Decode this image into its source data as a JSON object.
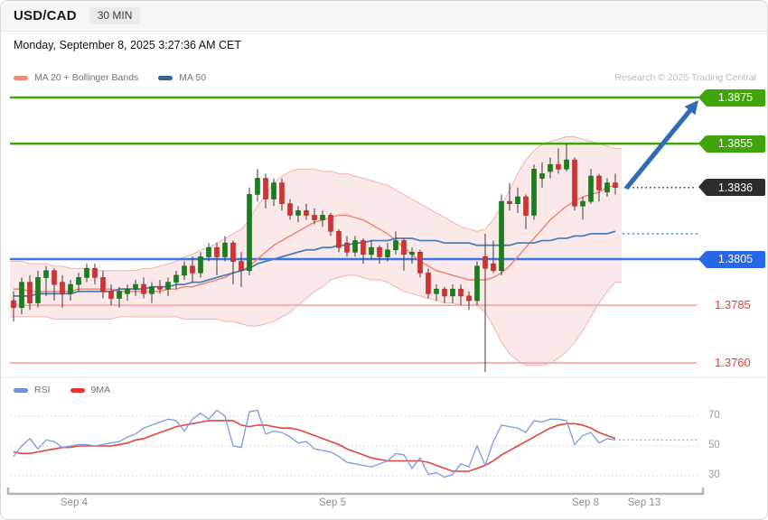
{
  "header": {
    "symbol": "USD/CAD",
    "timeframe": "30 MIN"
  },
  "datetime": "Monday, September 8, 2025 3:27:36 AM CET",
  "credit": "Research © 2025 Trading Central",
  "legend_main": [
    {
      "label": "MA 20 + Bollinger Bands",
      "color": "#f08a7b"
    },
    {
      "label": "MA 50",
      "color": "#3d6390"
    }
  ],
  "legend_rsi": [
    {
      "label": "RSI",
      "color": "#6f8fe0"
    },
    {
      "label": "9MA",
      "color": "#e6362e"
    }
  ],
  "colors": {
    "resistance_green": "#3fa50a",
    "support_blue_label": "#2966e8",
    "support_blue_line": "#3b76e8",
    "last_black": "#2d2d2d",
    "minor_pink_line": "#f2a09e",
    "minor_red_text": "#f03b3b",
    "candle_up": "#17801c",
    "candle_up_border": "#0f6a14",
    "candle_down": "#d23232",
    "candle_down_border": "#b02525",
    "wick": "#3c3c3c",
    "boll_fill": "#f6caca",
    "boll_edge": "#f3b3af",
    "ma20": "#f08070",
    "ma50": "#4b80bd",
    "arrow": "#2e6cb5",
    "rsi_line": "#7e99e6",
    "rsi_ma": "#e6423a",
    "grid": "#c9c9c9",
    "axis": "#b3b3b3"
  },
  "levels": [
    {
      "price": "1.3875",
      "kind": "box",
      "color": "#3fa50a",
      "line_color": "#3fa50a",
      "line": "solid",
      "line_width": 2.5
    },
    {
      "price": "1.3855",
      "kind": "box",
      "color": "#3fa50a",
      "line_color": "#3fa50a",
      "line": "solid",
      "line_width": 2.5
    },
    {
      "price": "1.3836",
      "kind": "box",
      "color": "#2d2d2d",
      "line_color": "#2b2b2b",
      "line": "dotted",
      "line_width": 1.4
    },
    {
      "price": "1.3805",
      "kind": "box",
      "color": "#2966e8",
      "line_color": "#3b76e8",
      "line": "solid",
      "line_width": 2.4
    },
    {
      "price": "1.3785",
      "kind": "text",
      "color": "#f03b3b",
      "line_color": "#f2a09e",
      "line": "solid",
      "line_width": 1.6
    },
    {
      "price": "1.3760",
      "kind": "text",
      "color": "#f03b3b",
      "line_color": "#f2a09e",
      "line": "solid",
      "line_width": 1.6
    }
  ],
  "x_axis": {
    "labels": [
      {
        "label": "Sep 4",
        "x": 81
      },
      {
        "label": "Sep 5",
        "x": 367
      },
      {
        "label": "Sep 8",
        "x": 647
      },
      {
        "label": "Sep 13",
        "x": 712
      }
    ]
  },
  "rsi_axis": [
    70,
    50,
    30
  ],
  "chart_data": {
    "type": "candlestick+rsi",
    "instrument": "USD/CAD",
    "interval": "30 MIN",
    "ylim": [
      1.3753,
      1.3878
    ],
    "levels": [
      1.3875,
      1.3855,
      1.3836,
      1.3805,
      1.3785,
      1.376
    ],
    "last_price": 1.3836,
    "candles": [
      [
        1.3787,
        1.3791,
        1.3778,
        1.3784
      ],
      [
        1.3784,
        1.3797,
        1.3781,
        1.3795
      ],
      [
        1.3795,
        1.3798,
        1.3783,
        1.3786
      ],
      [
        1.3786,
        1.38,
        1.3784,
        1.3797
      ],
      [
        1.3797,
        1.3802,
        1.3789,
        1.38
      ],
      [
        1.38,
        1.3801,
        1.3787,
        1.3794
      ],
      [
        1.3795,
        1.3798,
        1.3784,
        1.379
      ],
      [
        1.379,
        1.3796,
        1.3787,
        1.3794
      ],
      [
        1.3794,
        1.3799,
        1.3791,
        1.3797
      ],
      [
        1.3797,
        1.3803,
        1.3795,
        1.3801
      ],
      [
        1.3801,
        1.3803,
        1.3794,
        1.3797
      ],
      [
        1.3797,
        1.38,
        1.3788,
        1.3791
      ],
      [
        1.3791,
        1.3794,
        1.3785,
        1.3788
      ],
      [
        1.3788,
        1.3793,
        1.3784,
        1.3791
      ],
      [
        1.379,
        1.3794,
        1.3787,
        1.3792
      ],
      [
        1.3792,
        1.3796,
        1.3789,
        1.3794
      ],
      [
        1.3794,
        1.3797,
        1.3788,
        1.379
      ],
      [
        1.379,
        1.3795,
        1.3786,
        1.3793
      ],
      [
        1.3793,
        1.3796,
        1.379,
        1.3792
      ],
      [
        1.3792,
        1.3797,
        1.3789,
        1.3795
      ],
      [
        1.3795,
        1.38,
        1.3792,
        1.3798
      ],
      [
        1.3798,
        1.3804,
        1.3796,
        1.3802
      ],
      [
        1.3802,
        1.3806,
        1.3795,
        1.3799
      ],
      [
        1.3799,
        1.3808,
        1.3797,
        1.3806
      ],
      [
        1.3806,
        1.3812,
        1.3804,
        1.381
      ],
      [
        1.381,
        1.3812,
        1.3798,
        1.3806
      ],
      [
        1.3806,
        1.3815,
        1.3804,
        1.3812
      ],
      [
        1.3812,
        1.3813,
        1.3794,
        1.3804
      ],
      [
        1.3804,
        1.3808,
        1.3793,
        1.38
      ],
      [
        1.38,
        1.3836,
        1.3798,
        1.3833
      ],
      [
        1.3833,
        1.3844,
        1.383,
        1.384
      ],
      [
        1.384,
        1.3842,
        1.3827,
        1.3831
      ],
      [
        1.3831,
        1.384,
        1.3828,
        1.3838
      ],
      [
        1.3838,
        1.384,
        1.3826,
        1.3829
      ],
      [
        1.3829,
        1.3831,
        1.3822,
        1.3824
      ],
      [
        1.3824,
        1.3828,
        1.3821,
        1.3826
      ],
      [
        1.3826,
        1.3829,
        1.3822,
        1.3824
      ],
      [
        1.3824,
        1.3827,
        1.382,
        1.3822
      ],
      [
        1.3822,
        1.3826,
        1.3819,
        1.3824
      ],
      [
        1.3824,
        1.3825,
        1.3815,
        1.3817
      ],
      [
        1.3817,
        1.3818,
        1.3808,
        1.381
      ],
      [
        1.3812,
        1.3815,
        1.3806,
        1.3808
      ],
      [
        1.3808,
        1.3815,
        1.3806,
        1.3813
      ],
      [
        1.3813,
        1.3814,
        1.3803,
        1.3807
      ],
      [
        1.3807,
        1.3813,
        1.3805,
        1.381
      ],
      [
        1.381,
        1.3811,
        1.3803,
        1.3806
      ],
      [
        1.3806,
        1.3812,
        1.3804,
        1.3809
      ],
      [
        1.3809,
        1.3817,
        1.3807,
        1.3813
      ],
      [
        1.3813,
        1.3814,
        1.38,
        1.3807
      ],
      [
        1.3807,
        1.381,
        1.3803,
        1.3808
      ],
      [
        1.3808,
        1.3809,
        1.3797,
        1.3799
      ],
      [
        1.3799,
        1.3801,
        1.3788,
        1.379
      ],
      [
        1.379,
        1.3794,
        1.3787,
        1.3792
      ],
      [
        1.3792,
        1.3793,
        1.3786,
        1.3789
      ],
      [
        1.3789,
        1.3794,
        1.3786,
        1.3792
      ],
      [
        1.3792,
        1.3794,
        1.3785,
        1.3789
      ],
      [
        1.3789,
        1.3791,
        1.3783,
        1.3787
      ],
      [
        1.3787,
        1.3804,
        1.3785,
        1.3802
      ],
      [
        1.3806,
        1.3816,
        1.3756,
        1.3801
      ],
      [
        1.3803,
        1.3813,
        1.3799,
        1.38
      ],
      [
        1.38,
        1.3833,
        1.3798,
        1.383
      ],
      [
        1.383,
        1.3838,
        1.3826,
        1.3829
      ],
      [
        1.3829,
        1.3836,
        1.3825,
        1.3832
      ],
      [
        1.3832,
        1.3833,
        1.3818,
        1.3824
      ],
      [
        1.3824,
        1.3846,
        1.3822,
        1.3844
      ],
      [
        1.384,
        1.3847,
        1.3836,
        1.3842
      ],
      [
        1.3843,
        1.3849,
        1.384,
        1.3846
      ],
      [
        1.3846,
        1.3853,
        1.3842,
        1.3844
      ],
      [
        1.3844,
        1.3855,
        1.3843,
        1.3848
      ],
      [
        1.3848,
        1.3849,
        1.3826,
        1.3828
      ],
      [
        1.3828,
        1.3832,
        1.3822,
        1.383
      ],
      [
        1.383,
        1.3844,
        1.3829,
        1.3841
      ],
      [
        1.3841,
        1.3842,
        1.383,
        1.3835
      ],
      [
        1.3834,
        1.384,
        1.3832,
        1.3838
      ],
      [
        1.3838,
        1.3842,
        1.3833,
        1.3836
      ]
    ],
    "ma20": [
      1.3792,
      1.3792,
      1.3791,
      1.3791,
      1.3791,
      1.3791,
      1.3791,
      1.3791,
      1.3792,
      1.3792,
      1.3792,
      1.3792,
      1.3792,
      1.3791,
      1.3791,
      1.3791,
      1.3791,
      1.3791,
      1.3791,
      1.3792,
      1.3792,
      1.3793,
      1.3793,
      1.3794,
      1.3795,
      1.3796,
      1.3797,
      1.3799,
      1.38,
      1.3802,
      1.3805,
      1.3808,
      1.3811,
      1.3813,
      1.3815,
      1.3817,
      1.3819,
      1.3821,
      1.3822,
      1.3823,
      1.3824,
      1.3824,
      1.3823,
      1.3822,
      1.382,
      1.3818,
      1.3816,
      1.3813,
      1.381,
      1.3807,
      1.3804,
      1.3802,
      1.38,
      1.3799,
      1.3798,
      1.3797,
      1.3796,
      1.3796,
      1.3796,
      1.3797,
      1.3799,
      1.3802,
      1.3806,
      1.381,
      1.3814,
      1.3818,
      1.3822,
      1.3825,
      1.3828,
      1.383,
      1.3832,
      1.3833,
      1.3834,
      1.3836,
      1.3837
    ],
    "ma50": [
      1.3789,
      1.3789,
      1.3789,
      1.379,
      1.379,
      1.379,
      1.379,
      1.379,
      1.3791,
      1.3791,
      1.3791,
      1.3791,
      1.3791,
      1.3792,
      1.3792,
      1.3792,
      1.3792,
      1.3793,
      1.3793,
      1.3793,
      1.3794,
      1.3794,
      1.3795,
      1.3795,
      1.3796,
      1.3797,
      1.3798,
      1.3799,
      1.38,
      1.3801,
      1.3803,
      1.3804,
      1.3805,
      1.3806,
      1.3807,
      1.3808,
      1.3809,
      1.3809,
      1.381,
      1.381,
      1.3811,
      1.3811,
      1.3812,
      1.3812,
      1.3813,
      1.3813,
      1.3813,
      1.3814,
      1.3814,
      1.3814,
      1.3813,
      1.3813,
      1.3813,
      1.3812,
      1.3812,
      1.3812,
      1.3812,
      1.3811,
      1.3811,
      1.3811,
      1.3811,
      1.3811,
      1.3812,
      1.3812,
      1.3812,
      1.3813,
      1.3813,
      1.3814,
      1.3814,
      1.3815,
      1.3815,
      1.3816,
      1.3816,
      1.3816,
      1.3817
    ],
    "boll_upper": [
      1.3804,
      1.3804,
      1.3803,
      1.3803,
      1.3803,
      1.3802,
      1.3802,
      1.3801,
      1.3801,
      1.3801,
      1.38,
      1.38,
      1.38,
      1.38,
      1.38,
      1.38,
      1.3801,
      1.3801,
      1.3802,
      1.3803,
      1.3804,
      1.3806,
      1.3807,
      1.3809,
      1.381,
      1.3812,
      1.3814,
      1.3816,
      1.3818,
      1.3822,
      1.3828,
      1.3833,
      1.3838,
      1.3841,
      1.3843,
      1.3844,
      1.3844,
      1.3844,
      1.3843,
      1.3843,
      1.3842,
      1.3842,
      1.3841,
      1.384,
      1.3839,
      1.3838,
      1.3837,
      1.3835,
      1.3833,
      1.3831,
      1.3829,
      1.3827,
      1.3825,
      1.3823,
      1.3821,
      1.3819,
      1.3818,
      1.3817,
      1.3818,
      1.3822,
      1.3828,
      1.3835,
      1.3842,
      1.3848,
      1.3852,
      1.3855,
      1.3856,
      1.3857,
      1.3858,
      1.3858,
      1.3857,
      1.3856,
      1.3855,
      1.3854,
      1.3853
    ],
    "boll_lower": [
      1.378,
      1.378,
      1.378,
      1.378,
      1.378,
      1.3779,
      1.3779,
      1.3779,
      1.3779,
      1.3779,
      1.3779,
      1.3779,
      1.3779,
      1.378,
      1.378,
      1.378,
      1.378,
      1.378,
      1.378,
      1.378,
      1.378,
      1.3779,
      1.3779,
      1.3779,
      1.3779,
      1.3779,
      1.3778,
      1.3778,
      1.3777,
      1.3776,
      1.3776,
      1.3777,
      1.3778,
      1.378,
      1.3782,
      1.3785,
      1.3788,
      1.3791,
      1.3793,
      1.3796,
      1.3797,
      1.3798,
      1.3798,
      1.3797,
      1.3796,
      1.3796,
      1.3795,
      1.3793,
      1.3791,
      1.379,
      1.3789,
      1.3788,
      1.3787,
      1.3786,
      1.3786,
      1.3785,
      1.3785,
      1.3785,
      1.3782,
      1.3776,
      1.3769,
      1.3764,
      1.3761,
      1.3759,
      1.3759,
      1.3759,
      1.376,
      1.3762,
      1.3765,
      1.3769,
      1.3774,
      1.378,
      1.3786,
      1.3791,
      1.3795
    ],
    "rsi": [
      43,
      50,
      55,
      48,
      54,
      53,
      49,
      50,
      51,
      51,
      50,
      51,
      52,
      53,
      56,
      58,
      62,
      64,
      66,
      68,
      67,
      60,
      68,
      72,
      68,
      74,
      70,
      50,
      49,
      73,
      74,
      58,
      60,
      59,
      56,
      52,
      53,
      48,
      47,
      46,
      43,
      39,
      38,
      37,
      36,
      38,
      40,
      45,
      44,
      35,
      42,
      31,
      32,
      29,
      31,
      38,
      36,
      50,
      37,
      53,
      64,
      63,
      62,
      59,
      67,
      66,
      68,
      68,
      67,
      51,
      57,
      59,
      52,
      55,
      54
    ],
    "rsi_ma9": [
      46,
      45,
      45,
      46,
      47,
      48,
      49,
      49,
      50,
      50,
      50,
      50,
      50,
      51,
      52,
      54,
      55,
      57,
      59,
      61,
      63,
      64,
      65,
      66,
      67,
      67,
      67,
      67,
      64,
      63,
      64,
      64,
      63,
      62,
      62,
      61,
      59,
      57,
      55,
      53,
      51,
      48,
      46,
      44,
      42,
      41,
      40,
      40,
      40,
      40,
      40,
      39,
      37,
      35,
      33,
      33,
      33,
      35,
      37,
      40,
      44,
      47,
      50,
      53,
      56,
      59,
      62,
      64,
      65,
      65,
      64,
      62,
      59,
      57,
      55
    ],
    "rsi_levels": [
      70,
      50,
      30
    ],
    "projection": {
      "ma50_dotted": 1.3816,
      "rsi_dotted": 54,
      "arrow_from_price": 1.3836,
      "arrow_to_price": 1.3875
    }
  }
}
